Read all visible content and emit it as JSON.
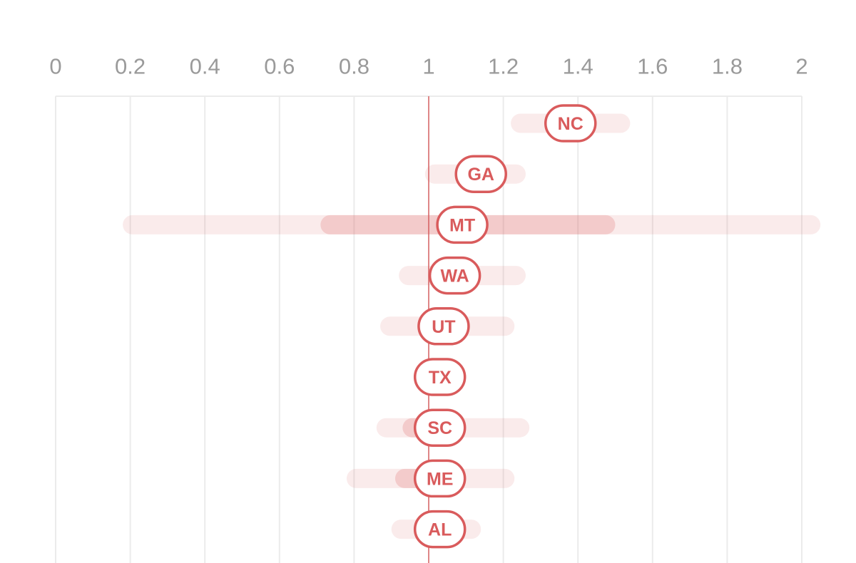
{
  "chart_data": {
    "type": "interval",
    "xlim": [
      0,
      2
    ],
    "xticks": [
      0,
      0.2,
      0.4,
      0.6,
      0.8,
      1,
      1.2,
      1.4,
      1.6,
      1.8,
      2
    ],
    "reference": 1,
    "grid": true,
    "color": "#d95b5c",
    "rows": [
      {
        "label": "NC",
        "value": 1.38,
        "low": 1.22,
        "high": 1.54,
        "inner_low": null,
        "inner_high": null
      },
      {
        "label": "GA",
        "value": 1.14,
        "low": 0.99,
        "high": 1.26,
        "inner_low": null,
        "inner_high": null
      },
      {
        "label": "MT",
        "value": 1.09,
        "low": 0.18,
        "high": 2.05,
        "inner_low": 0.71,
        "inner_high": 1.5
      },
      {
        "label": "WA",
        "value": 1.07,
        "low": 0.92,
        "high": 1.26,
        "inner_low": null,
        "inner_high": null
      },
      {
        "label": "UT",
        "value": 1.04,
        "low": 0.87,
        "high": 1.23,
        "inner_low": null,
        "inner_high": null
      },
      {
        "label": "TX",
        "value": 1.03,
        "low": null,
        "high": null,
        "inner_low": null,
        "inner_high": null
      },
      {
        "label": "SC",
        "value": 1.03,
        "low": 0.86,
        "high": 1.27,
        "inner_low": 0.93,
        "inner_high": 1.0
      },
      {
        "label": "ME",
        "value": 1.03,
        "low": 0.78,
        "high": 1.23,
        "inner_low": 0.91,
        "inner_high": 1.0
      },
      {
        "label": "AL",
        "value": 1.03,
        "low": 0.9,
        "high": 1.14,
        "inner_low": null,
        "inner_high": null
      }
    ]
  }
}
